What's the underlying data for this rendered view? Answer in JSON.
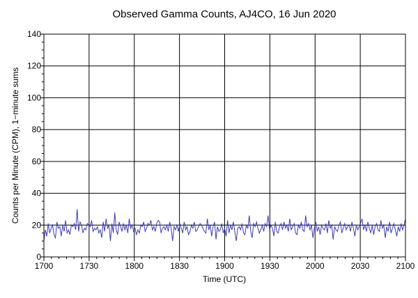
{
  "chart_data": {
    "type": "line",
    "title": "Observed Gamma Counts, AJ4CO, 16 Jun 2020",
    "xlabel": "Time (UTC)",
    "ylabel": "Counts per Minute (CPM), 1−minute sums",
    "xlim": [
      0,
      240
    ],
    "ylim": [
      0,
      140
    ],
    "grid": true,
    "x_ticks": [
      {
        "minutes": 0,
        "label": "1700"
      },
      {
        "minutes": 30,
        "label": "1730"
      },
      {
        "minutes": 60,
        "label": "1800"
      },
      {
        "minutes": 90,
        "label": "1830"
      },
      {
        "minutes": 120,
        "label": "1900"
      },
      {
        "minutes": 150,
        "label": "1930"
      },
      {
        "minutes": 180,
        "label": "2000"
      },
      {
        "minutes": 210,
        "label": "2030"
      },
      {
        "minutes": 240,
        "label": "2100"
      }
    ],
    "y_ticks": [
      0,
      20,
      40,
      60,
      80,
      100,
      120,
      140
    ],
    "series": [
      {
        "color": "#3b3bb0",
        "values": [
          10,
          17,
          13,
          21,
          15,
          18,
          20,
          14,
          12,
          22,
          18,
          19,
          13,
          20,
          16,
          23,
          15,
          17,
          14,
          20,
          19,
          21,
          17,
          30,
          16,
          22,
          20,
          15,
          18,
          17,
          21,
          20,
          19,
          23,
          16,
          18,
          17,
          19,
          15,
          17,
          12,
          22,
          16,
          24,
          18,
          20,
          10,
          21,
          15,
          28,
          17,
          14,
          22,
          19,
          16,
          21,
          17,
          20,
          15,
          24,
          18,
          20,
          16,
          18,
          14,
          17,
          15,
          20,
          19,
          22,
          16,
          18,
          21,
          20,
          23,
          17,
          19,
          16,
          21,
          23,
          22,
          15,
          18,
          19,
          17,
          20,
          16,
          22,
          18,
          10,
          19,
          17,
          20,
          16,
          21,
          18,
          15,
          22,
          17,
          19,
          14,
          16,
          20,
          18,
          22,
          16,
          17,
          19,
          21,
          20,
          18,
          16,
          15,
          24,
          17,
          20,
          13,
          19,
          22,
          11,
          19,
          16,
          17,
          21,
          15,
          18,
          13,
          23,
          15,
          20,
          17,
          22,
          16,
          10,
          18,
          19,
          17,
          21,
          15,
          14,
          20,
          18,
          26,
          16,
          12,
          21,
          19,
          22,
          18,
          15,
          17,
          20,
          16,
          21,
          19,
          26,
          17,
          20,
          18,
          13,
          22,
          16,
          15,
          19,
          21,
          17,
          22,
          18,
          20,
          16,
          24,
          17,
          19,
          21,
          15,
          14,
          20,
          18,
          22,
          17,
          16,
          26,
          19,
          21,
          17,
          20,
          12,
          18,
          22,
          16,
          19,
          14,
          20,
          18,
          17,
          21,
          15,
          23,
          18,
          20,
          11,
          19,
          17,
          16,
          20,
          22,
          15,
          18,
          21,
          17,
          19,
          20,
          16,
          22,
          18,
          13,
          20,
          17,
          19,
          21,
          24,
          17,
          20,
          16,
          22,
          18,
          15,
          20,
          14,
          19,
          21,
          17,
          16,
          23,
          18,
          20,
          12,
          19,
          16,
          22,
          15,
          18,
          21,
          17,
          13,
          19,
          16,
          21,
          17,
          20,
          24
        ]
      }
    ]
  }
}
